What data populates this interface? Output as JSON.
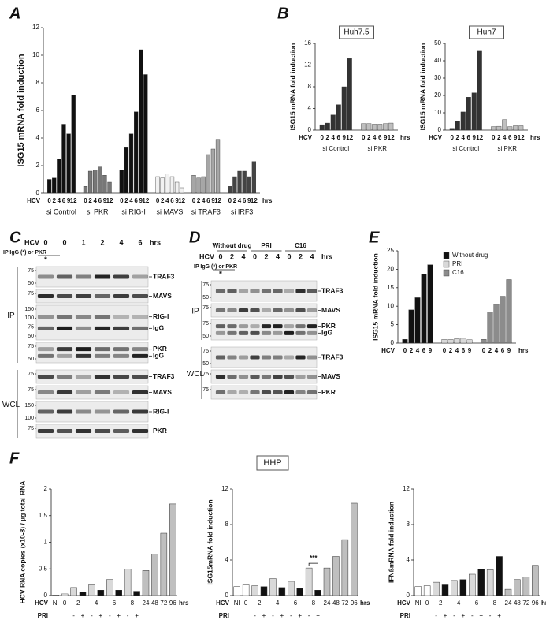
{
  "panel_letters": [
    "A",
    "B",
    "C",
    "D",
    "E",
    "F"
  ],
  "hhp_label": "HHP",
  "chart_data": [
    {
      "type": "cluster",
      "ylabel": "ISG15 mRNA fold induction",
      "x_label": "HCV",
      "x_unit": "hrs",
      "ylim": [
        0,
        12
      ],
      "yticks": [
        0,
        2,
        4,
        6,
        8,
        10,
        12
      ],
      "categories": [
        "0",
        "2",
        "4",
        "6",
        "9",
        "12"
      ],
      "series": [
        {
          "name": "si Control",
          "color": "#111111",
          "values": [
            1,
            1.1,
            2.5,
            5,
            4.3,
            7.1
          ]
        },
        {
          "name": "si PKR",
          "color": "#777777",
          "values": [
            0.5,
            1.6,
            1.7,
            1.9,
            1.3,
            0.8
          ]
        },
        {
          "name": "si RIG-I",
          "color": "#111111",
          "values": [
            1.7,
            3.3,
            4.3,
            5.9,
            10.4,
            8.6
          ]
        },
        {
          "name": "si MAVS",
          "color": "#f2f2f2",
          "values": [
            1.2,
            1.1,
            1.4,
            1.2,
            0.8,
            0.4
          ]
        },
        {
          "name": "si TRAF3",
          "color": "#a6a6a6",
          "values": [
            1.3,
            1.1,
            1.2,
            2.8,
            3.2,
            3.9
          ]
        },
        {
          "name": "si IRF3",
          "color": "#444444",
          "values": [
            0.5,
            1.2,
            1.6,
            1.6,
            1.2,
            2.3
          ]
        }
      ]
    },
    {
      "type": "cluster",
      "title": "Huh7.5",
      "ylabel": "ISG15 mRNA fold induction",
      "x_label": "HCV",
      "x_unit": "hrs",
      "ylim": [
        0,
        16
      ],
      "yticks": [
        0,
        4,
        8,
        12,
        16
      ],
      "categories": [
        "0",
        "2",
        "4",
        "6",
        "9",
        "12"
      ],
      "series": [
        {
          "name": "si Control",
          "color": "#333333",
          "values": [
            1,
            1.3,
            2.8,
            4.7,
            8,
            13.2
          ]
        },
        {
          "name": "si PKR",
          "color": "#bfbfbf",
          "values": [
            1.2,
            1.2,
            1.1,
            1.1,
            1.2,
            1.3
          ]
        }
      ]
    },
    {
      "type": "cluster",
      "title": "Huh7",
      "ylabel": "ISG15 mRNA fold induction",
      "x_label": "HCV",
      "x_unit": "hrs",
      "ylim": [
        0,
        50
      ],
      "yticks": [
        0,
        10,
        20,
        30,
        40,
        50
      ],
      "categories": [
        "0",
        "2",
        "4",
        "6",
        "9",
        "12"
      ],
      "series": [
        {
          "name": "si Control",
          "color": "#333333",
          "values": [
            1,
            5,
            10.5,
            19,
            21.5,
            45.5
          ]
        },
        {
          "name": "si PKR",
          "color": "#bfbfbf",
          "values": [
            2,
            2.2,
            6,
            2,
            2.5,
            2.5
          ]
        }
      ]
    },
    {
      "type": "cluster",
      "ylabel": "ISG15 mRNA fold induction",
      "x_label": "HCV",
      "x_unit": "hrs",
      "legend": "upper center",
      "ylim": [
        0,
        25
      ],
      "yticks": [
        0,
        5,
        10,
        15,
        20,
        25
      ],
      "categories": [
        "0",
        "2",
        "4",
        "6",
        "9"
      ],
      "series": [
        {
          "name": "Without drug",
          "color": "#111111",
          "values": [
            1,
            9,
            12.3,
            18.7,
            21.2
          ]
        },
        {
          "name": "PRI",
          "color": "#d9d9d9",
          "values": [
            1,
            1,
            1.2,
            1.3,
            0.9
          ]
        },
        {
          "name": "C16",
          "color": "#8c8c8c",
          "values": [
            1,
            8.5,
            10.5,
            12.7,
            17.2
          ]
        }
      ]
    },
    {
      "type": "bar",
      "ylabel": "HCV RNA copies (x10-8) / µg total RNA",
      "x_label": "HCV",
      "x_unit": "hrs",
      "pri_label": "PRI",
      "ylim": [
        0,
        2
      ],
      "yticks": [
        0,
        {
          "value": 0.5,
          "label": "0,5"
        },
        1,
        {
          "value": 1.5,
          "label": "1,5"
        },
        2
      ],
      "categories": [
        "NI",
        "0",
        "2",
        null,
        "4",
        null,
        "6",
        null,
        "8",
        null,
        "24",
        "48",
        "72",
        "96"
      ],
      "pri": [
        null,
        null,
        "-",
        "+",
        "-",
        "+",
        "-",
        "+",
        "-",
        "+",
        null,
        null,
        null,
        null
      ],
      "colors": [
        "#ffffff",
        "#ffffff",
        "#d9d9d9",
        "#111111",
        "#d9d9d9",
        "#111111",
        "#d9d9d9",
        "#111111",
        "#d9d9d9",
        "#111111",
        "#bfbfbf",
        "#bfbfbf",
        "#bfbfbf",
        "#bfbfbf"
      ],
      "values": [
        0.01,
        0.03,
        0.15,
        0.07,
        0.2,
        0.1,
        0.3,
        0.1,
        0.5,
        0.08,
        0.47,
        0.78,
        1.17,
        1.72
      ]
    },
    {
      "type": "bar",
      "ylabel": "ISG15mRNA fold induction",
      "x_label": "HCV",
      "x_unit": "hrs",
      "pri_label": "PRI",
      "annotation": "***",
      "ylim": [
        0,
        12
      ],
      "yticks": [
        0,
        4,
        8,
        12
      ],
      "categories": [
        "NI",
        "0",
        "2",
        null,
        "4",
        null,
        "6",
        null,
        "8",
        null,
        "24",
        "48",
        "72",
        "96"
      ],
      "pri": [
        null,
        null,
        "-",
        "+",
        "-",
        "+",
        "-",
        "+",
        "-",
        "+",
        null,
        null,
        null,
        null
      ],
      "colors": [
        "#ffffff",
        "#ffffff",
        "#d9d9d9",
        "#111111",
        "#d9d9d9",
        "#111111",
        "#d9d9d9",
        "#111111",
        "#d9d9d9",
        "#111111",
        "#bfbfbf",
        "#bfbfbf",
        "#bfbfbf",
        "#bfbfbf"
      ],
      "values": [
        1,
        1.2,
        1.1,
        1,
        1.9,
        0.9,
        1.6,
        0.8,
        3.1,
        0.6,
        3.1,
        4.4,
        6.3,
        10.4
      ]
    },
    {
      "type": "bar",
      "ylabel": "IFNßmRNA fold induction",
      "x_label": "HCV",
      "x_unit": "hrs",
      "pri_label": "PRI",
      "ylim": [
        0,
        12
      ],
      "yticks": [
        0,
        4,
        8,
        12
      ],
      "categories": [
        "NI",
        "0",
        "2",
        null,
        "4",
        null,
        "6",
        null,
        "8",
        null,
        "24",
        "48",
        "72",
        "96"
      ],
      "pri": [
        null,
        null,
        "-",
        "+",
        "-",
        "+",
        "-",
        "+",
        "-",
        "+",
        null,
        null,
        null,
        null
      ],
      "colors": [
        "#ffffff",
        "#ffffff",
        "#d9d9d9",
        "#111111",
        "#d9d9d9",
        "#111111",
        "#d9d9d9",
        "#111111",
        "#d9d9d9",
        "#111111",
        "#bfbfbf",
        "#bfbfbf",
        "#bfbfbf",
        "#bfbfbf"
      ],
      "values": [
        1,
        1.1,
        1.5,
        1.2,
        1.7,
        1.8,
        2.4,
        3,
        2.9,
        4.4,
        0.7,
        1.8,
        2.1,
        3.4
      ]
    }
  ],
  "blots": {
    "C": {
      "hcv": "HCV",
      "lanes": [
        "0",
        "0",
        "1",
        "2",
        "4",
        "6"
      ],
      "unit": "hrs",
      "ip_label": "IP IgG (*) or PKR",
      "star": "*",
      "sections": [
        {
          "name": "IP",
          "strips": [
            {
              "markers": [
                "75",
                "50"
              ],
              "bands": [
                "TRAF3"
              ]
            },
            {
              "markers": [
                "75"
              ],
              "bands": [
                "MAVS"
              ]
            },
            {
              "markers": [
                "150",
                "100",
                "75",
                "50"
              ],
              "bands": [
                "RIG-I",
                "IgG"
              ]
            },
            {
              "markers": [
                "75",
                "50"
              ],
              "bands": [
                "PKR",
                "IgG"
              ]
            }
          ]
        },
        {
          "name": "WCL",
          "strips": [
            {
              "markers": [
                "75"
              ],
              "bands": [
                "TRAF3"
              ]
            },
            {
              "markers": [
                "75"
              ],
              "bands": [
                "MAVS"
              ]
            },
            {
              "markers": [
                "150",
                "100"
              ],
              "bands": [
                "RIG-I"
              ]
            },
            {
              "markers": [
                "75"
              ],
              "bands": [
                "PKR"
              ]
            }
          ]
        }
      ]
    },
    "D": {
      "groups": [
        "Without drug",
        "PRI",
        "C16"
      ],
      "hcv": "HCV",
      "lanes": [
        "0",
        "2",
        "4",
        "0",
        "2",
        "4",
        "0",
        "2",
        "4"
      ],
      "unit": "hrs",
      "ip_label": "IP IgG (*) or PKR",
      "star": "*",
      "sections": [
        {
          "name": "IP",
          "strips": [
            {
              "markers": [
                "75",
                "50"
              ],
              "bands": [
                "TRAF3"
              ]
            },
            {
              "markers": [
                "75"
              ],
              "bands": [
                "MAVS"
              ]
            },
            {
              "markers": [
                "75",
                "50"
              ],
              "bands": [
                "PKR",
                "IgG"
              ]
            }
          ]
        },
        {
          "name": "WCL",
          "strips": [
            {
              "markers": [
                "75",
                "50"
              ],
              "bands": [
                "TRAF3"
              ]
            },
            {
              "markers": [
                "75"
              ],
              "bands": [
                "MAVS"
              ]
            },
            {
              "markers": [
                "75"
              ],
              "bands": [
                "PKR"
              ]
            }
          ]
        }
      ]
    }
  }
}
